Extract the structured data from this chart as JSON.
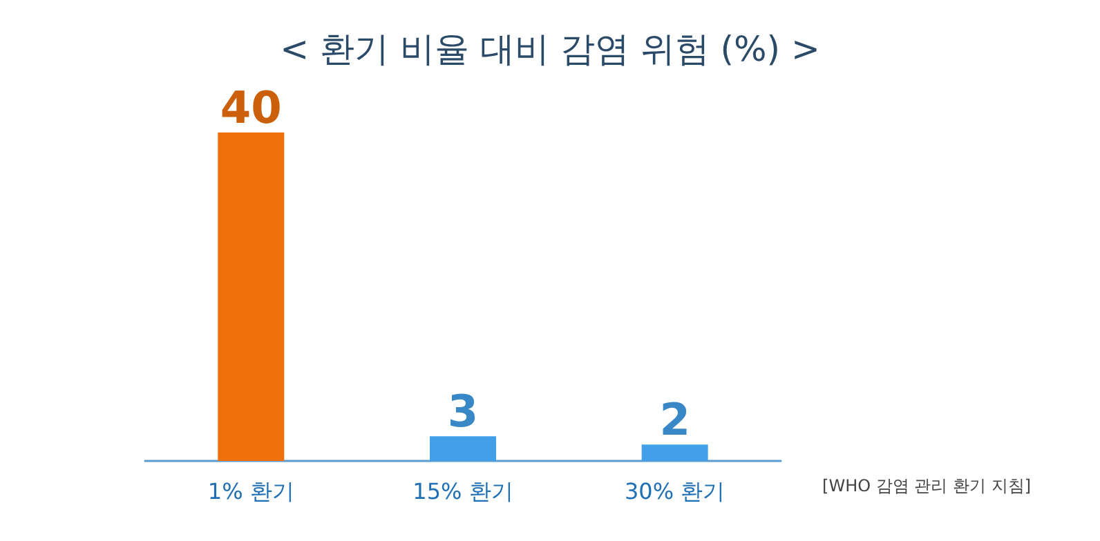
{
  "chart_data": {
    "type": "bar",
    "title": "< 환기 비율 대비 감염 위험 (%) >",
    "categories": [
      "1% 환기",
      "15% 환기",
      "30% 환기"
    ],
    "values": [
      40,
      3,
      2
    ],
    "colors": [
      "#f0700c",
      "#42a0ea",
      "#42a0ea"
    ],
    "data_labels": true,
    "annotations": [
      "[WHO 감염 관리 환기 지침]"
    ]
  }
}
